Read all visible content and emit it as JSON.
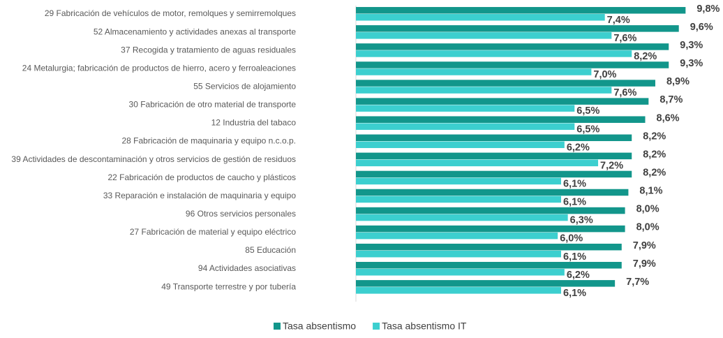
{
  "chart_data": {
    "type": "hbar",
    "categories": [
      "29 Fabricación de vehículos de motor, remolques y semirremolques",
      "52 Almacenamiento y actividades anexas al transporte",
      "37 Recogida y tratamiento de aguas residuales",
      "24 Metalurgia; fabricación de productos de hierro, acero y ferroaleaciones",
      "55 Servicios de alojamiento",
      "30 Fabricación de otro material de transporte",
      "12 Industria del tabaco",
      "28 Fabricación de maquinaria y equipo n.c.o.p.",
      "39 Actividades de descontaminación y otros servicios de gestión de residuos",
      "22 Fabricación de productos de caucho y plásticos",
      "33 Reparación e instalación de maquinaria y equipo",
      "96 Otros servicios personales",
      "27 Fabricación de material y equipo eléctrico",
      "85 Educación",
      "94 Actividades asociativas",
      "49 Transporte terrestre y por tubería"
    ],
    "series": [
      {
        "name": "Tasa absentismo",
        "color": "#12968b",
        "values": [
          9.8,
          9.6,
          9.3,
          9.3,
          8.9,
          8.7,
          8.6,
          8.2,
          8.2,
          8.2,
          8.1,
          8.0,
          8.0,
          7.9,
          7.9,
          7.7
        ],
        "value_labels": [
          "9,8%",
          "9,6%",
          "9,3%",
          "9,3%",
          "8,9%",
          "8,7%",
          "8,6%",
          "8,2%",
          "8,2%",
          "8,2%",
          "8,1%",
          "8,0%",
          "8,0%",
          "7,9%",
          "7,9%",
          "7,7%"
        ]
      },
      {
        "name": "Tasa absentismo IT",
        "color": "#3ccfcf",
        "values": [
          7.4,
          7.6,
          8.2,
          7.0,
          7.6,
          6.5,
          6.5,
          6.2,
          7.2,
          6.1,
          6.1,
          6.3,
          6.0,
          6.1,
          6.2,
          6.1
        ],
        "value_labels": [
          "7,4%",
          "7,6%",
          "8,2%",
          "7,0%",
          "7,6%",
          "6,5%",
          "6,5%",
          "6,2%",
          "7,2%",
          "6,1%",
          "6,1%",
          "6,3%",
          "6,0%",
          "6,1%",
          "6,2%",
          "6,1%"
        ]
      }
    ],
    "xlim": [
      0,
      10
    ]
  }
}
